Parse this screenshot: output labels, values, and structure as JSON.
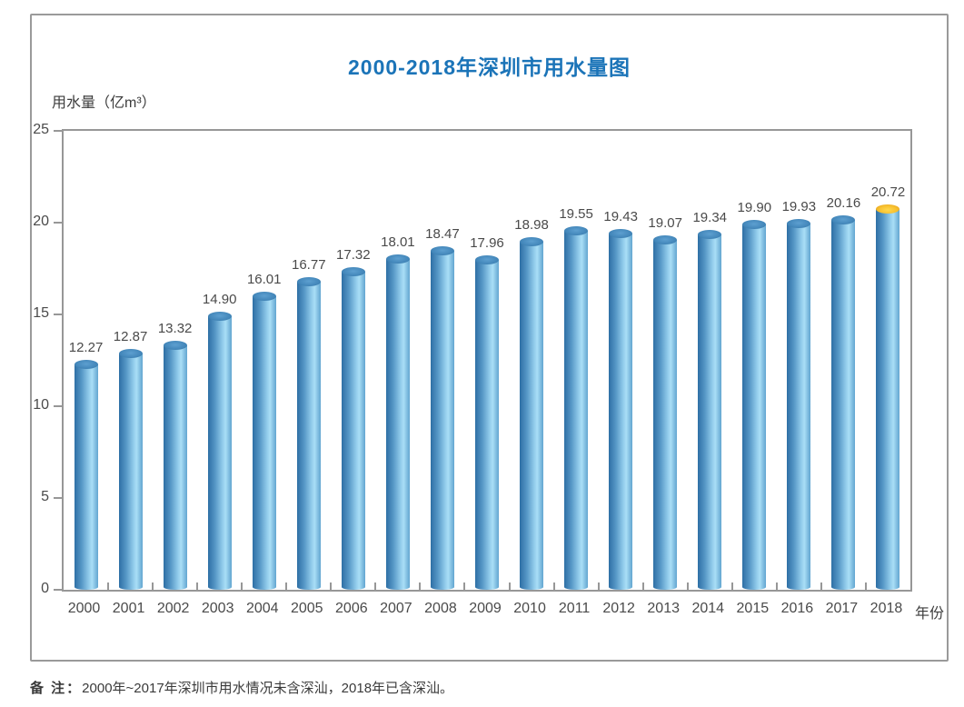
{
  "page": {
    "note_prefix": "备 注：",
    "note_text": "2000年~2017年深圳市用水情况未含深汕，2018年已含深汕。"
  },
  "chart_data": {
    "type": "bar",
    "title": "2000-2018年深圳市用水量图",
    "ylabel": "用水量（亿m³）",
    "xlabel": "年份",
    "categories": [
      "2000",
      "2001",
      "2002",
      "2003",
      "2004",
      "2005",
      "2006",
      "2007",
      "2008",
      "2009",
      "2010",
      "2011",
      "2012",
      "2013",
      "2014",
      "2015",
      "2016",
      "2017",
      "2018"
    ],
    "values": [
      12.27,
      12.87,
      13.32,
      14.9,
      16.01,
      16.77,
      17.32,
      18.01,
      18.47,
      17.96,
      18.98,
      19.55,
      19.43,
      19.07,
      19.34,
      19.9,
      19.93,
      20.16,
      20.72
    ],
    "ylim": [
      0,
      25
    ],
    "yticks": [
      0,
      5,
      10,
      15,
      20,
      25
    ],
    "grid": false,
    "legend": "none",
    "bar_style": "cylinder",
    "highlight_category": "2018",
    "colors": {
      "title": "#1b74b8",
      "bar_dark_edge": "#2e6fa5",
      "bar_highlight": "#a9def6",
      "bar_right_edge": "#62a5d0",
      "cap_blue": "#4488bb",
      "cap_gold": "#f7bf2e",
      "axis_frame": "#979797",
      "value_text": "#4a4a4a"
    }
  }
}
